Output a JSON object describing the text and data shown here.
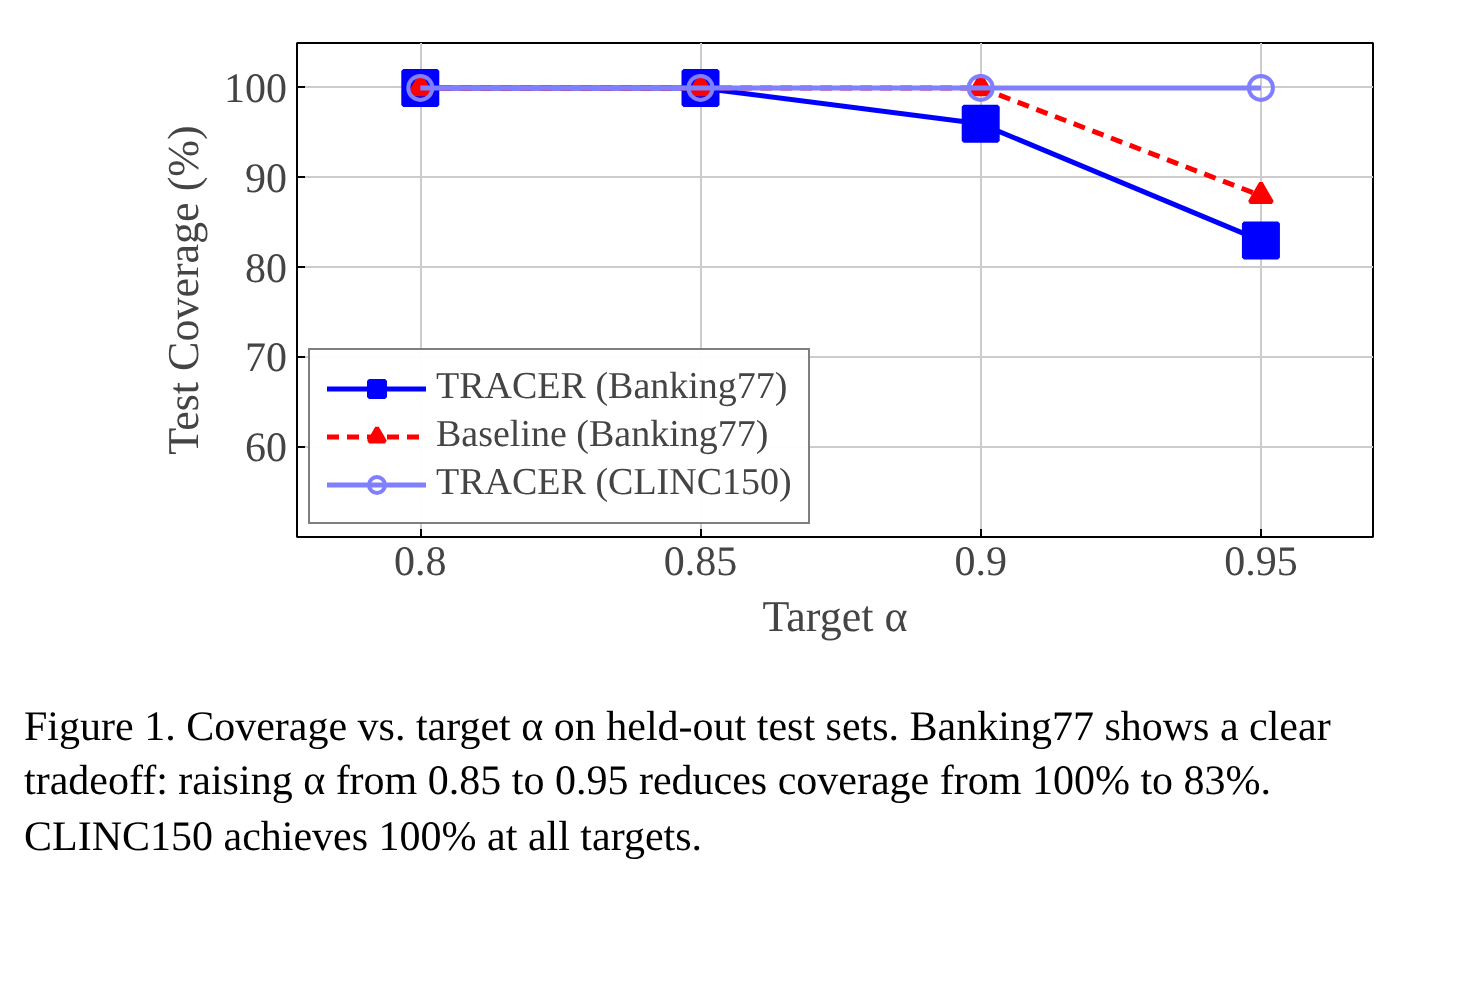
{
  "chart_data": {
    "type": "line",
    "xlabel": "Target α",
    "ylabel": "Test Coverage (%)",
    "x": [
      0.8,
      0.85,
      0.9,
      0.95
    ],
    "series": [
      {
        "name": "TRACER (Banking77)",
        "color": "#0000ff",
        "values": [
          100,
          100,
          96,
          83
        ],
        "marker": "square",
        "line_style": "solid"
      },
      {
        "name": "Baseline (Banking77)",
        "color": "#ff0000",
        "values": [
          100,
          100,
          100,
          88
        ],
        "marker": "triangle",
        "line_style": "dashed"
      },
      {
        "name": "TRACER (CLINC150)",
        "color": "#7f7fff",
        "values": [
          100,
          100,
          100,
          100
        ],
        "marker": "circle",
        "line_style": "solid"
      }
    ],
    "xlim": [
      0.778,
      0.97
    ],
    "ylim": [
      50,
      105
    ],
    "xticks": [
      0.8,
      0.85,
      0.9,
      0.95
    ],
    "yticks": [
      60,
      70,
      80,
      90,
      100
    ],
    "grid": true,
    "legend": "bottom left",
    "annotations": [
      "Figure 1. Coverage vs. target α on held-out test sets. Banking77 shows a clear tradeoff: raising α from 0.85 to 0.95 reduces coverage from 100% to 83%. CLINC150 achieves 100% at all targets."
    ]
  }
}
